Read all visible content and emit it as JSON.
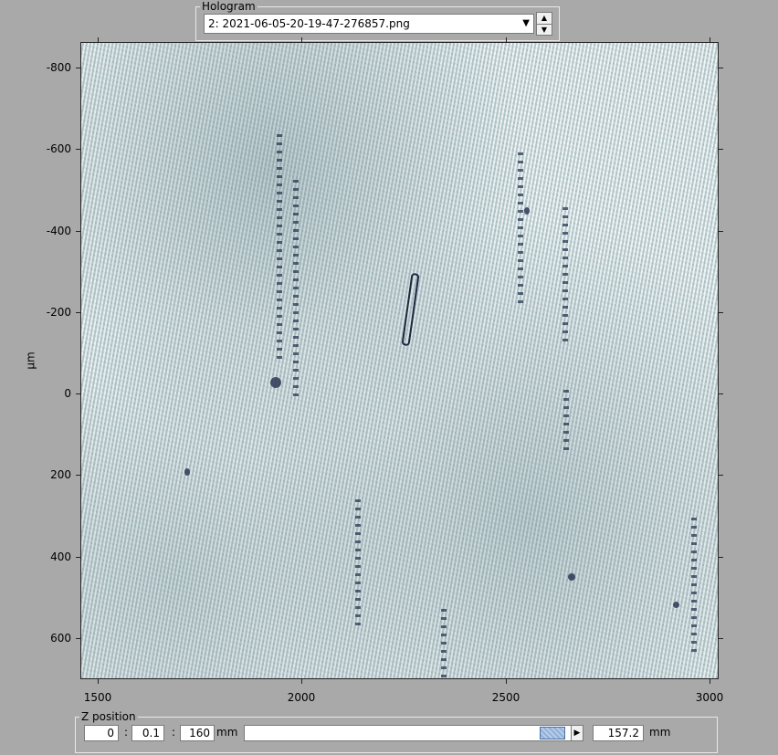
{
  "hologram": {
    "group_label": "Hologram",
    "selected": "2: 2021-06-05-20-19-47-276857.png",
    "dropdown_arrow": "▼",
    "spin_up": "▲",
    "spin_down": "▼"
  },
  "plot": {
    "y_label": "μm",
    "y_ticks": [
      "-800",
      "-600",
      "-400",
      "-200",
      "0",
      "200",
      "400",
      "600"
    ],
    "x_ticks": [
      "1500",
      "2000",
      "2500",
      "3000"
    ]
  },
  "zposition": {
    "group_label": "Z position",
    "start": "0",
    "step": "0.1",
    "end": "160",
    "range_unit": "mm",
    "value": "157.2",
    "value_unit": "mm",
    "slider_fraction": 0.9825,
    "left_arrow": "◀",
    "right_arrow": "▶"
  }
}
